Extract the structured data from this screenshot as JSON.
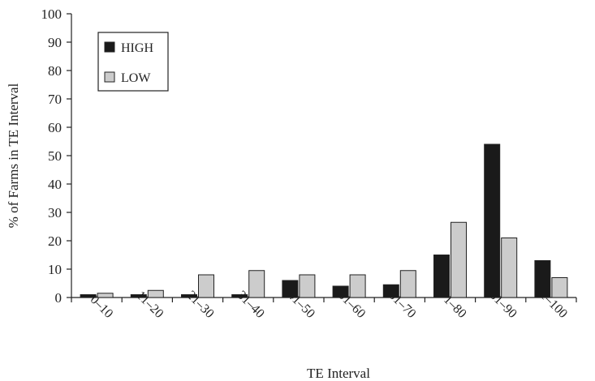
{
  "chart_data": {
    "type": "bar",
    "xlabel": "TE Interval",
    "ylabel": "% of Farms in TE Interval",
    "ylim": [
      0,
      100
    ],
    "yticks": [
      0,
      10,
      20,
      30,
      40,
      50,
      60,
      70,
      80,
      90,
      100
    ],
    "categories": [
      "0–10",
      "11–20",
      "21–30",
      "31–40",
      "41–50",
      "51–60",
      "61–70",
      "71–80",
      "81–90",
      "91–100"
    ],
    "series": [
      {
        "name": "HIGH",
        "color": "#1a1a1a",
        "values": [
          1,
          1,
          1,
          1,
          6,
          4,
          4.5,
          15,
          54,
          13
        ]
      },
      {
        "name": "LOW",
        "color": "#cccccc",
        "values": [
          1.5,
          2.5,
          8,
          9.5,
          8,
          8,
          9.5,
          26.5,
          21,
          7
        ]
      }
    ],
    "legend_position": "top-left",
    "grid": false
  }
}
